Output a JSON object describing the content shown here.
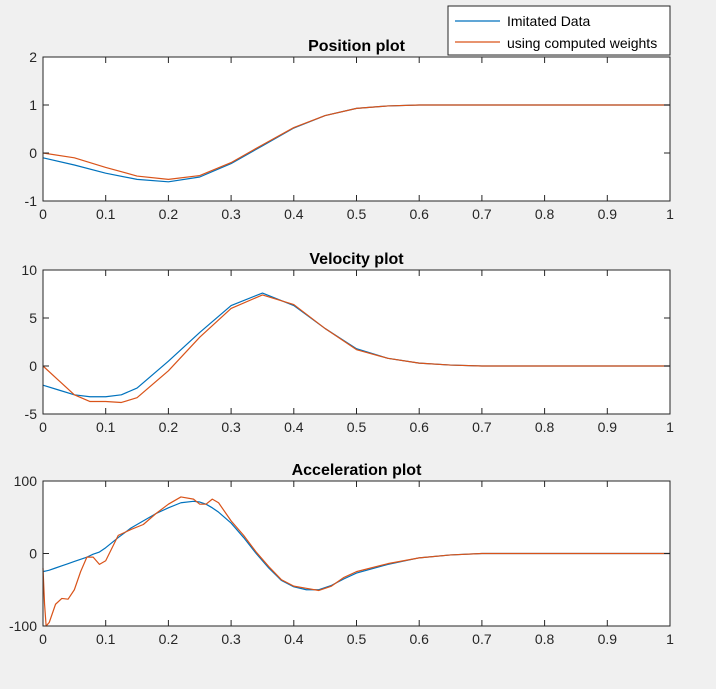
{
  "colors": {
    "imitated": "#0072bd",
    "computed": "#d95319",
    "axes_bg": "#ffffff",
    "axis": "#262626"
  },
  "legend": {
    "location": "top-right",
    "entries": [
      "Imitated Data",
      "using computed weights"
    ]
  },
  "chart_data": [
    {
      "type": "line",
      "title": "Position plot",
      "xlim": [
        0,
        1
      ],
      "ylim": [
        -1,
        2
      ],
      "xticks": [
        "0",
        "0.1",
        "0.2",
        "0.3",
        "0.4",
        "0.5",
        "0.6",
        "0.7",
        "0.8",
        "0.9",
        "1"
      ],
      "yticks": [
        "-1",
        "0",
        "1",
        "2"
      ],
      "x": [
        0,
        0.05,
        0.1,
        0.15,
        0.2,
        0.25,
        0.3,
        0.35,
        0.4,
        0.45,
        0.5,
        0.55,
        0.6,
        0.7,
        0.8,
        0.9,
        1
      ],
      "series": [
        {
          "name": "Imitated Data",
          "values": [
            -0.1,
            -0.25,
            -0.42,
            -0.55,
            -0.6,
            -0.5,
            -0.22,
            0.15,
            0.52,
            0.78,
            0.93,
            0.98,
            1.0,
            1.0,
            1.0,
            1.0,
            1.0
          ]
        },
        {
          "name": "using computed weights",
          "values": [
            0.0,
            -0.1,
            -0.3,
            -0.48,
            -0.55,
            -0.47,
            -0.2,
            0.17,
            0.53,
            0.78,
            0.93,
            0.98,
            1.0,
            1.0,
            1.0,
            1.0,
            1.0
          ]
        }
      ]
    },
    {
      "type": "line",
      "title": "Velocity plot",
      "xlim": [
        0,
        1
      ],
      "ylim": [
        -5,
        10
      ],
      "xticks": [
        "0",
        "0.1",
        "0.2",
        "0.3",
        "0.4",
        "0.5",
        "0.6",
        "0.7",
        "0.8",
        "0.9",
        "1"
      ],
      "yticks": [
        "-5",
        "0",
        "5",
        "10"
      ],
      "x": [
        0,
        0.025,
        0.05,
        0.075,
        0.1,
        0.125,
        0.15,
        0.2,
        0.25,
        0.3,
        0.35,
        0.4,
        0.45,
        0.5,
        0.55,
        0.6,
        0.65,
        0.7,
        0.8,
        0.9,
        1
      ],
      "series": [
        {
          "name": "Imitated Data",
          "values": [
            -2,
            -2.5,
            -3,
            -3.2,
            -3.2,
            -3,
            -2.3,
            0.5,
            3.5,
            6.3,
            7.6,
            6.3,
            3.9,
            1.8,
            0.8,
            0.3,
            0.1,
            0,
            0,
            0,
            0
          ]
        },
        {
          "name": "using computed weights",
          "values": [
            0,
            -1.5,
            -3,
            -3.7,
            -3.7,
            -3.8,
            -3.3,
            -0.5,
            3,
            6,
            7.4,
            6.4,
            3.9,
            1.7,
            0.8,
            0.3,
            0.1,
            0,
            0,
            0,
            0
          ]
        }
      ]
    },
    {
      "type": "line",
      "title": "Acceleration plot",
      "xlim": [
        0,
        1
      ],
      "ylim": [
        -100,
        100
      ],
      "xticks": [
        "0",
        "0.1",
        "0.2",
        "0.3",
        "0.4",
        "0.5",
        "0.6",
        "0.7",
        "0.8",
        "0.9",
        "1"
      ],
      "yticks": [
        "-100",
        "0",
        "100"
      ],
      "x": [
        0,
        0.0025,
        0.005,
        0.01,
        0.02,
        0.03,
        0.04,
        0.05,
        0.06,
        0.07,
        0.08,
        0.09,
        0.1,
        0.12,
        0.14,
        0.16,
        0.18,
        0.2,
        0.22,
        0.24,
        0.25,
        0.26,
        0.27,
        0.28,
        0.3,
        0.32,
        0.34,
        0.36,
        0.38,
        0.4,
        0.42,
        0.44,
        0.46,
        0.48,
        0.5,
        0.55,
        0.6,
        0.65,
        0.7,
        0.8,
        0.9,
        1
      ],
      "series": [
        {
          "name": "Imitated Data",
          "values": [
            -25,
            -24.5,
            -24,
            -23,
            -20,
            -17,
            -14,
            -11,
            -8,
            -5,
            -1,
            2,
            8,
            22,
            35,
            45,
            55,
            63,
            70,
            72,
            71,
            68,
            63,
            57,
            42,
            22,
            0,
            -20,
            -37,
            -46,
            -50,
            -50,
            -44,
            -35,
            -27,
            -15,
            -6,
            -2,
            0,
            0,
            0,
            0
          ]
        },
        {
          "name": "using computed weights",
          "values": [
            -20,
            -70,
            -100,
            -95,
            -70,
            -62,
            -63,
            -50,
            -25,
            -5,
            -5,
            -15,
            -10,
            25,
            33,
            40,
            55,
            68,
            78,
            75,
            68,
            68,
            75,
            70,
            45,
            25,
            2,
            -18,
            -36,
            -45,
            -48,
            -51,
            -45,
            -33,
            -25,
            -14,
            -6,
            -2,
            0,
            0,
            0,
            0
          ]
        }
      ]
    }
  ]
}
